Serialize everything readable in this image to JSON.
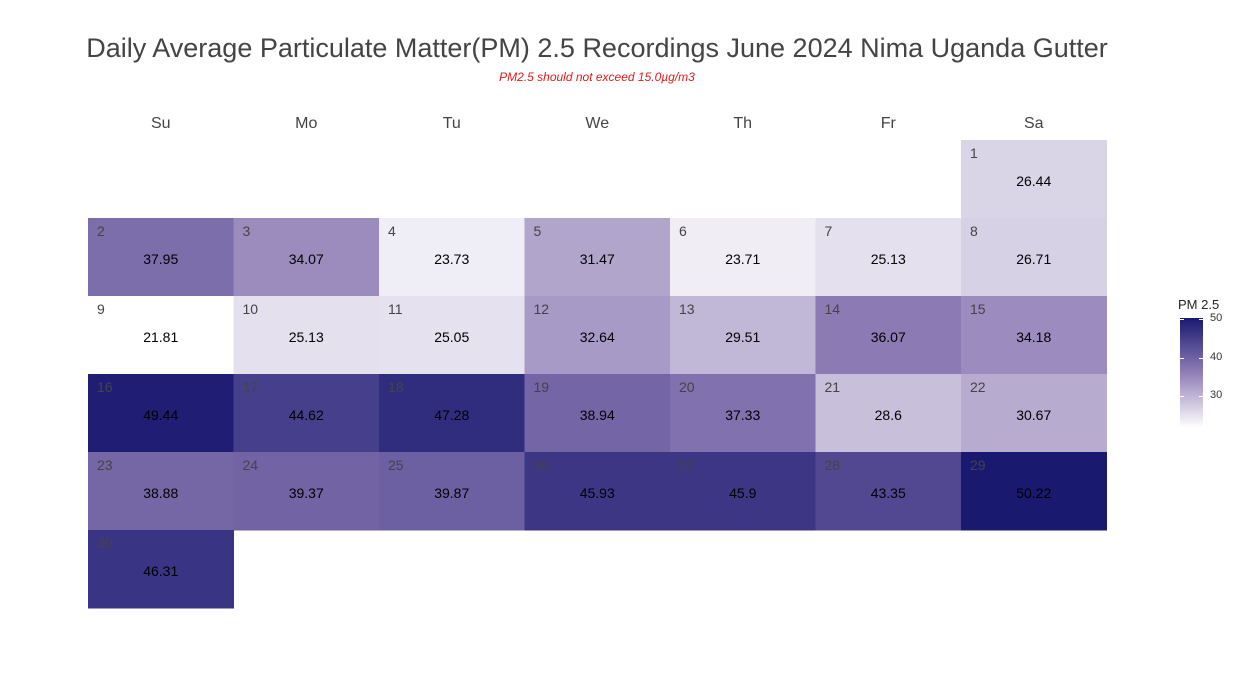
{
  "chart_data": {
    "type": "heatmap",
    "title": "Daily Average Particulate Matter(PM) 2.5 Recordings June 2024 Nima Uganda Gutter",
    "subtitle": "PM2.5 should not exceed 15.0µg/m3",
    "weekdays": [
      "Su",
      "Mo",
      "Tu",
      "We",
      "Th",
      "Fr",
      "Sa"
    ],
    "first_weekday_index": 6,
    "days": [
      1,
      2,
      3,
      4,
      5,
      6,
      7,
      8,
      9,
      10,
      11,
      12,
      13,
      14,
      15,
      16,
      17,
      18,
      19,
      20,
      21,
      22,
      23,
      24,
      25,
      26,
      27,
      28,
      29,
      30
    ],
    "values": [
      26.44,
      37.95,
      34.07,
      23.73,
      31.47,
      23.71,
      25.13,
      26.71,
      21.81,
      25.13,
      25.05,
      32.64,
      29.51,
      36.07,
      34.18,
      49.44,
      44.62,
      47.28,
      38.94,
      37.33,
      28.6,
      30.67,
      38.88,
      39.37,
      39.87,
      45.93,
      45.9,
      43.35,
      50.22,
      46.31
    ],
    "value_labels": [
      "26.44",
      "37.95",
      "34.07",
      "23.73",
      "31.47",
      "23.71",
      "25.13",
      "26.71",
      "21.81",
      "25.13",
      "25.05",
      "32.64",
      "29.51",
      "36.07",
      "34.18",
      "49.44",
      "44.62",
      "47.28",
      "38.94",
      "37.33",
      "28.6",
      "30.67",
      "38.88",
      "39.37",
      "39.87",
      "45.93",
      "45.9",
      "43.35",
      "50.22",
      "46.31"
    ],
    "color_range": [
      21.81,
      50.22
    ],
    "colors": {
      "low": "#ffffff",
      "mid": "#8c7ab4",
      "high": "#191970"
    },
    "legend": {
      "title": "PM 2.5",
      "ticks": [
        30,
        40,
        50
      ],
      "placement": "right"
    }
  }
}
